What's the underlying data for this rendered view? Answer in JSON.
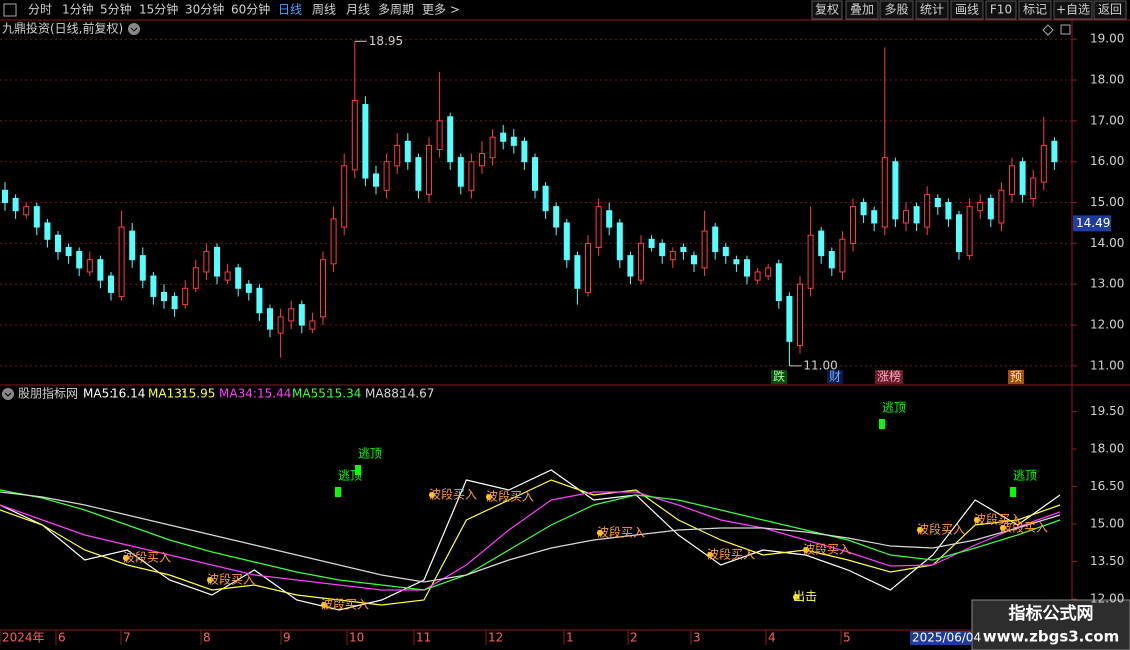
{
  "toolbar": {
    "left": [
      "分时",
      "1分钟",
      "5分钟",
      "15分钟",
      "30分钟",
      "60分钟",
      "日线",
      "周线",
      "月线",
      "多周期",
      "更多 >"
    ],
    "active": "日线",
    "right": [
      "复权",
      "叠加",
      "多股",
      "统计",
      "画线",
      "F10",
      "标记",
      "+自选",
      "返回"
    ]
  },
  "chart_data": [
    {
      "type": "candlestick",
      "title": "九鼎投资(日线,前复权)",
      "open": [
        15.3,
        15.1,
        14.7,
        14.9,
        14.5,
        14.2,
        13.9,
        13.8,
        13.3,
        13.6,
        13.2,
        12.7,
        14.3,
        13.7,
        13.2,
        12.8,
        12.7,
        12.5,
        12.9,
        13.3,
        13.9,
        13.1,
        13.4,
        13.0,
        12.9,
        12.4,
        11.8,
        12.1,
        12.5,
        11.9,
        12.2,
        13.5,
        14.4,
        15.8,
        17.4,
        15.7,
        15.3,
        15.9,
        16.5,
        16.1,
        15.2,
        16.3,
        17.1,
        16.1,
        15.3,
        15.9,
        16.1,
        16.7,
        16.6,
        16.5,
        16.1,
        15.4,
        14.9,
        14.5,
        13.7,
        12.8,
        13.9,
        14.8,
        14.5,
        13.7,
        13.1,
        14.1,
        14.0,
        13.6,
        13.9,
        13.7,
        13.4,
        14.4,
        13.9,
        13.6,
        13.6,
        13.1,
        13.2,
        13.5,
        12.7,
        11.5,
        12.9,
        14.3,
        13.8,
        13.3,
        14.0,
        15.0,
        14.8,
        14.4,
        16.0,
        14.5,
        14.9,
        14.4,
        15.1,
        15.0,
        14.7,
        13.7,
        14.8,
        15.1,
        14.5,
        15.2,
        16.0,
        15.1,
        15.5,
        16.5
      ],
      "high": [
        15.5,
        15.2,
        15.0,
        15.0,
        14.6,
        14.3,
        14.0,
        13.9,
        13.8,
        13.7,
        13.3,
        14.8,
        14.5,
        13.9,
        13.3,
        13.0,
        12.8,
        13.1,
        13.6,
        14.0,
        14.0,
        13.5,
        13.5,
        13.1,
        13.0,
        12.5,
        12.4,
        12.6,
        12.6,
        12.3,
        13.8,
        14.9,
        16.2,
        18.95,
        17.6,
        15.9,
        16.2,
        16.7,
        16.7,
        16.2,
        16.6,
        18.2,
        17.2,
        16.2,
        16.2,
        16.5,
        16.8,
        16.9,
        16.8,
        16.6,
        16.2,
        15.5,
        15.0,
        14.6,
        13.8,
        14.2,
        15.1,
        15.0,
        14.6,
        13.8,
        14.2,
        14.2,
        14.1,
        13.9,
        14.0,
        13.8,
        14.8,
        14.5,
        14.0,
        13.7,
        13.7,
        13.4,
        13.5,
        13.6,
        12.8,
        13.2,
        14.9,
        14.4,
        13.9,
        14.3,
        15.1,
        15.1,
        14.9,
        18.8,
        16.1,
        15.0,
        15.0,
        15.4,
        15.2,
        15.1,
        14.8,
        15.1,
        15.2,
        15.2,
        15.5,
        16.1,
        16.1,
        15.8,
        17.1,
        16.6
      ],
      "low": [
        14.8,
        14.6,
        14.6,
        14.2,
        13.9,
        13.6,
        13.5,
        13.2,
        13.2,
        12.9,
        12.6,
        12.6,
        13.4,
        12.9,
        12.5,
        12.4,
        12.2,
        12.4,
        12.8,
        13.1,
        13.0,
        13.0,
        12.7,
        12.6,
        12.1,
        11.7,
        11.2,
        11.9,
        11.8,
        11.8,
        12.0,
        13.3,
        14.2,
        15.6,
        15.4,
        15.2,
        15.1,
        15.7,
        15.8,
        15.1,
        15.0,
        16.1,
        15.8,
        15.2,
        15.1,
        15.7,
        15.9,
        16.3,
        16.2,
        15.8,
        15.1,
        14.6,
        14.2,
        13.4,
        12.5,
        12.7,
        13.7,
        14.2,
        13.4,
        13.0,
        13.0,
        13.8,
        13.5,
        13.4,
        13.6,
        13.3,
        13.2,
        13.6,
        13.5,
        13.3,
        13.0,
        13.0,
        13.1,
        12.4,
        11.0,
        11.3,
        12.7,
        13.5,
        13.2,
        13.1,
        13.8,
        14.5,
        14.3,
        14.2,
        14.4,
        14.3,
        14.3,
        14.2,
        14.7,
        14.4,
        13.6,
        13.6,
        14.6,
        14.4,
        14.3,
        15.0,
        15.0,
        14.9,
        15.3,
        15.8
      ],
      "close": [
        15.0,
        14.8,
        14.9,
        14.4,
        14.1,
        13.8,
        13.7,
        13.4,
        13.6,
        13.1,
        12.8,
        14.4,
        13.6,
        13.1,
        12.7,
        12.6,
        12.4,
        12.9,
        13.4,
        13.8,
        13.2,
        13.3,
        12.9,
        12.8,
        12.3,
        11.9,
        12.2,
        12.4,
        12.0,
        12.1,
        13.6,
        14.6,
        15.9,
        17.5,
        15.6,
        15.4,
        16.0,
        16.4,
        16.0,
        15.3,
        16.4,
        17.0,
        16.0,
        15.4,
        16.0,
        16.2,
        16.6,
        16.5,
        16.4,
        16.0,
        15.3,
        14.8,
        14.4,
        13.6,
        12.9,
        14.0,
        14.9,
        14.4,
        13.6,
        13.2,
        14.0,
        13.9,
        13.7,
        13.8,
        13.8,
        13.5,
        14.3,
        13.8,
        13.7,
        13.5,
        13.2,
        13.3,
        13.4,
        12.6,
        11.6,
        13.0,
        14.2,
        13.7,
        13.4,
        14.1,
        14.9,
        14.7,
        14.5,
        16.1,
        14.6,
        14.8,
        14.5,
        15.2,
        14.9,
        14.6,
        13.8,
        14.9,
        15.0,
        14.6,
        15.3,
        15.9,
        15.2,
        15.6,
        16.4,
        16.0
      ],
      "up_color": "#ff3c3c",
      "down_color": "#54ffff",
      "ylim": [
        10.85,
        19.25
      ],
      "yticks": [
        {
          "value": 11,
          "label": "11.00"
        },
        {
          "value": 12,
          "label": "12.00"
        },
        {
          "value": 13,
          "label": "13.00"
        },
        {
          "value": 14,
          "label": "14.00"
        },
        {
          "value": 15,
          "label": "15.00"
        },
        {
          "value": 16,
          "label": "16.00"
        },
        {
          "value": 17,
          "label": "17.00"
        },
        {
          "value": 18,
          "label": "18.00"
        },
        {
          "value": 19,
          "label": "19.00"
        }
      ],
      "grid": true,
      "annotations": [
        {
          "label": "18.95",
          "value": 18.95,
          "at": "high"
        },
        {
          "label": "11.00",
          "value": 11,
          "at": "low"
        }
      ],
      "current_price": 14.49,
      "events": [
        "跌",
        "财",
        "涨榜",
        "预"
      ]
    },
    {
      "type": "line",
      "title": "股朋指标网",
      "series": [
        {
          "name": "MA5:",
          "last": 16.14,
          "color": "#ffffff",
          "values": [
            15.76,
            14.96,
            13.56,
            13.96,
            12.76,
            12.16,
            13.16,
            11.96,
            11.56,
            11.96,
            12.76,
            16.76,
            16.36,
            17.16,
            15.96,
            16.16,
            14.56,
            13.36,
            13.96,
            13.76,
            13.16,
            12.36,
            13.76,
            15.96,
            14.96,
            16.16
          ]
        },
        {
          "name": "MA13:",
          "last": 15.95,
          "color": "#ffff3c",
          "values": [
            15.56,
            14.96,
            13.96,
            13.36,
            12.96,
            12.36,
            12.56,
            12.16,
            11.96,
            11.76,
            11.96,
            15.16,
            15.96,
            16.76,
            16.16,
            16.36,
            15.16,
            14.36,
            13.76,
            13.96,
            13.56,
            13.08,
            13.36,
            14.96,
            15.16,
            15.76
          ]
        },
        {
          "name": "MA34:",
          "last": 15.44,
          "color": "#ff3cff",
          "values": [
            15.76,
            15.16,
            14.56,
            14.16,
            13.76,
            13.36,
            12.96,
            12.76,
            12.56,
            12.36,
            12.36,
            13.36,
            14.76,
            15.96,
            16.28,
            16.28,
            15.76,
            15.16,
            14.84,
            14.36,
            13.88,
            13.32,
            13.36,
            14.16,
            14.88,
            15.48
          ]
        },
        {
          "name": "MA55:",
          "last": 15.34,
          "color": "#3cff3c",
          "values": [
            16.36,
            16.04,
            15.56,
            14.96,
            14.36,
            13.88,
            13.48,
            13.08,
            12.76,
            12.56,
            12.36,
            12.96,
            13.96,
            14.96,
            15.76,
            16.16,
            15.96,
            15.56,
            15.16,
            14.76,
            14.36,
            13.76,
            13.56,
            14.04,
            14.56,
            15.16
          ]
        },
        {
          "name": "MA88:",
          "last": 14.67,
          "color": "#d8d8d8",
          "values": [
            16.28,
            16.08,
            15.76,
            15.36,
            14.96,
            14.56,
            14.16,
            13.76,
            13.36,
            12.96,
            12.68,
            12.96,
            13.56,
            14.04,
            14.36,
            14.56,
            14.76,
            14.84,
            14.84,
            14.68,
            14.44,
            14.12,
            14.04,
            14.36,
            14.84,
            15.36
          ]
        }
      ],
      "ylim": [
        10.84,
        20.04
      ],
      "yticks": [
        {
          "value": 12,
          "label": "12.00"
        },
        {
          "value": 13.5,
          "label": "13.50"
        },
        {
          "value": 15,
          "label": "15.00"
        },
        {
          "value": 16.5,
          "label": "16.50"
        },
        {
          "value": 18,
          "label": "18.00"
        },
        {
          "value": 19.5,
          "label": "19.50"
        }
      ],
      "signals": [
        {
          "label": "逃顶",
          "value": 16.28,
          "color": "#00ff00"
        },
        {
          "label": "逃顶",
          "value": 17.16,
          "color": "#00ff00"
        },
        {
          "label": "逃顶",
          "value": 19.0,
          "color": "#00ff00"
        },
        {
          "label": "逃顶",
          "value": 16.28,
          "color": "#00ff00"
        },
        {
          "label": "波段买入",
          "value": 13.64,
          "color": "#ff9a2a"
        },
        {
          "label": "波段买入",
          "value": 12.76,
          "color": "#ff9a2a"
        },
        {
          "label": "波段买入",
          "value": 11.76,
          "color": "#ff9a2a"
        },
        {
          "label": "波段买入",
          "value": 16.16,
          "color": "#ff9a2a"
        },
        {
          "label": "波段买入",
          "value": 16.08,
          "color": "#ff9a2a"
        },
        {
          "label": "波段买入",
          "value": 14.64,
          "color": "#ff9a2a"
        },
        {
          "label": "波段买入",
          "value": 13.76,
          "color": "#ff9a2a"
        },
        {
          "label": "波段买入",
          "value": 13.96,
          "color": "#ff9a2a"
        },
        {
          "label": "波段买入",
          "value": 14.76,
          "color": "#ff9a2a"
        },
        {
          "label": "波段买入",
          "value": 15.16,
          "color": "#ff9a2a"
        },
        {
          "label": "波段买入",
          "value": 14.84,
          "color": "#ff9a2a"
        },
        {
          "label": "出击",
          "value": 12.08,
          "color": "#ffff3c"
        }
      ]
    }
  ],
  "date_axis": {
    "labels": [
      "2024年",
      "6",
      "7",
      "8",
      "9",
      "10",
      "11",
      "12",
      "1",
      "2",
      "3",
      "4",
      "5"
    ],
    "current": "2025/06/04"
  },
  "watermark": {
    "title": "指标公式网",
    "url": "www.zbgs3.com"
  }
}
